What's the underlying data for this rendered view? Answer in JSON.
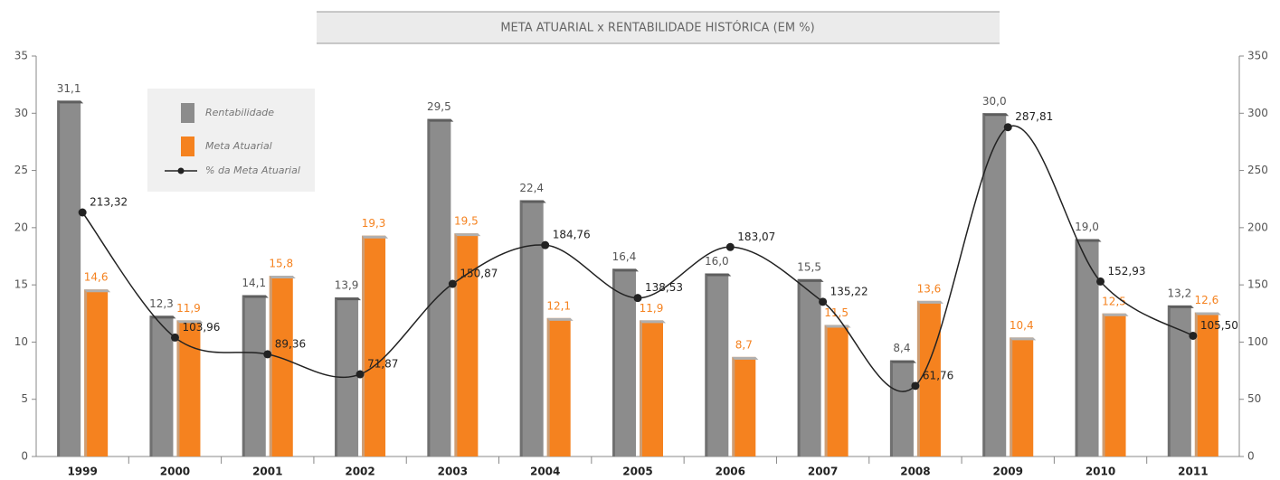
{
  "chart_data": {
    "type": "bar-line",
    "title": "META ATUARIAL x RENTABILIDADE HISTÓRICA (EM %)",
    "categories": [
      "1999",
      "2000",
      "2001",
      "2002",
      "2003",
      "2004",
      "2005",
      "2006",
      "2007",
      "2008",
      "2009",
      "2010",
      "2011"
    ],
    "series": [
      {
        "name": "Rentabilidade",
        "color": "#8c8c8c",
        "type": "bar",
        "values": [
          31.1,
          12.3,
          14.1,
          13.9,
          29.5,
          22.4,
          16.4,
          16.0,
          15.5,
          8.4,
          30.0,
          19.0,
          13.2
        ],
        "value_labels": [
          "31,1",
          "12,3",
          "14,1",
          "13,9",
          "29,5",
          "22,4",
          "16,4",
          "16,0",
          "15,5",
          "8,4",
          "30,0",
          "19,0",
          "13,2"
        ]
      },
      {
        "name": "Meta Atuarial",
        "color": "#f5821f",
        "type": "bar",
        "values": [
          14.6,
          11.9,
          15.8,
          19.3,
          19.5,
          12.1,
          11.9,
          8.7,
          11.5,
          13.6,
          10.4,
          12.5,
          12.6
        ],
        "value_labels": [
          "14,6",
          "11,9",
          "15,8",
          "19,3",
          "19,5",
          "12,1",
          "11,9",
          "8,7",
          "11,5",
          "13,6",
          "10,4",
          "12,5",
          "12,6"
        ]
      },
      {
        "name": "% da Meta Atuarial",
        "color": "#222222",
        "type": "line",
        "axis": "y2",
        "values": [
          213.32,
          103.96,
          89.36,
          71.87,
          150.87,
          184.76,
          138.53,
          183.07,
          135.22,
          61.76,
          287.81,
          152.93,
          105.5
        ],
        "value_labels": [
          "213,32",
          "103,96",
          "89,36",
          "71,87",
          "150,87",
          "184,76",
          "138,53",
          "183,07",
          "135,22",
          "61,76",
          "287,81",
          "152,93",
          "105,50"
        ]
      }
    ],
    "ylim": [
      0,
      35
    ],
    "yticks": [
      0,
      5,
      10,
      15,
      20,
      25,
      30,
      35
    ],
    "y2lim": [
      0,
      350
    ],
    "y2ticks": [
      0,
      50,
      100,
      150,
      200,
      250,
      300,
      350
    ],
    "legend": "upper left"
  }
}
